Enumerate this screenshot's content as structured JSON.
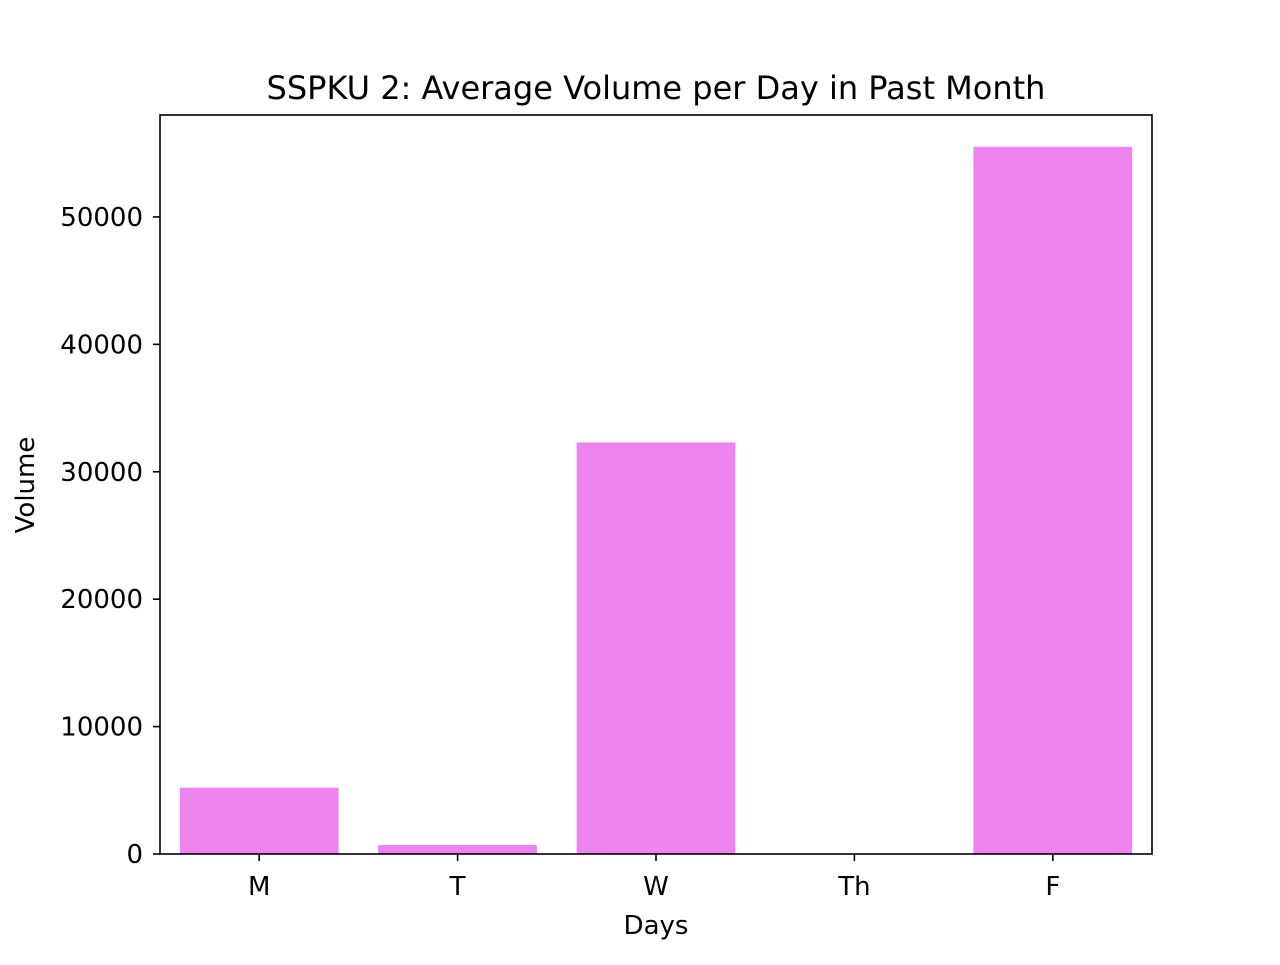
{
  "chart_data": {
    "type": "bar",
    "title": "SSPKU 2: Average Volume per Day in Past Month",
    "xlabel": "Days",
    "ylabel": "Volume",
    "categories": [
      "M",
      "T",
      "W",
      "Th",
      "F"
    ],
    "values": [
      5200,
      700,
      32300,
      0,
      55500
    ],
    "ylim": [
      0,
      58000
    ],
    "yticks": [
      0,
      10000,
      20000,
      30000,
      40000,
      50000
    ],
    "bar_color": "#ee82ee",
    "grid": false,
    "legend": "none"
  }
}
